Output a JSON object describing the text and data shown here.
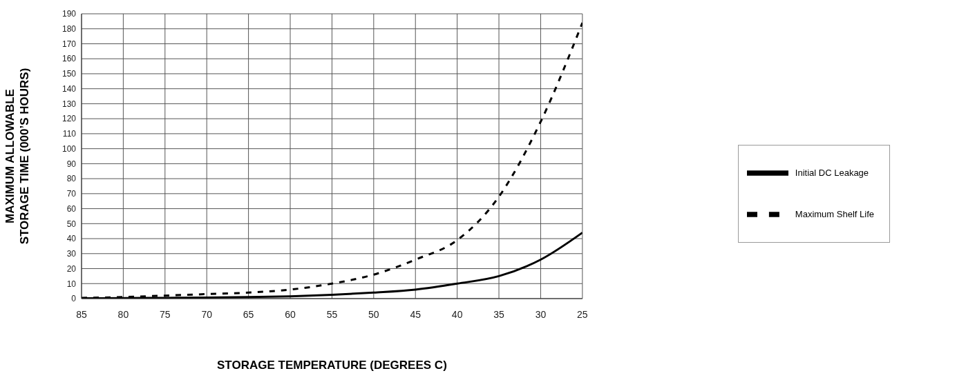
{
  "chart_data": {
    "type": "line",
    "xlabel": "STORAGE TEMPERATURE (DEGREES C)",
    "ylabel": "MAXIMUM ALLOWABLE\nSTORAGE TIME (000’S HOURS)",
    "x": [
      85,
      80,
      75,
      70,
      65,
      60,
      55,
      50,
      45,
      40,
      35,
      30,
      25
    ],
    "series": [
      {
        "name": "Initial DC Leakage",
        "color": "#000000",
        "line_style": "solid",
        "values": [
          0.2,
          0.3,
          0.5,
          0.7,
          1,
          1.5,
          2.5,
          4,
          6,
          10,
          15,
          26,
          44
        ]
      },
      {
        "name": "Maximum Shelf Life",
        "color": "#000000",
        "line_style": "dashed",
        "values": [
          0.5,
          1,
          2,
          3,
          4,
          6,
          10,
          16,
          26,
          39,
          68,
          118,
          184
        ]
      }
    ],
    "xlim": [
      85,
      25
    ],
    "xticks": [
      85,
      80,
      75,
      70,
      65,
      60,
      55,
      50,
      45,
      40,
      35,
      30,
      25
    ],
    "ylim": [
      0,
      190
    ],
    "yticks": [
      0,
      10,
      20,
      30,
      40,
      50,
      60,
      70,
      80,
      90,
      100,
      110,
      120,
      130,
      140,
      150,
      160,
      170,
      180,
      190
    ],
    "grid": true,
    "legend": "right",
    "marker": "none"
  }
}
